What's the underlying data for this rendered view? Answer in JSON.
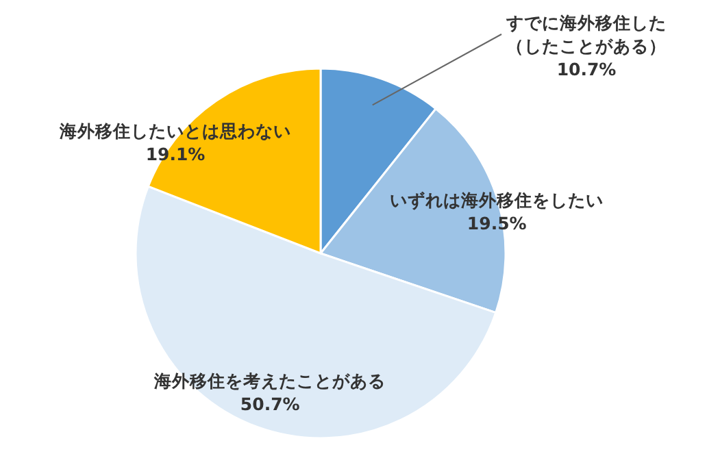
{
  "chart_data": {
    "type": "pie",
    "categories": [
      "すでに海外移住した（したことがある）",
      "いずれは海外移住をしたい",
      "海外移住を考えたことがある",
      "海外移住したいとは思わない"
    ],
    "values": [
      10.7,
      19.5,
      50.7,
      19.1
    ],
    "colors": [
      "#5b9bd5",
      "#9dc3e6",
      "#deebf7",
      "#ffc000"
    ],
    "value_labels": [
      "10.7%",
      "19.5%",
      "50.7%",
      "19.1%"
    ]
  }
}
